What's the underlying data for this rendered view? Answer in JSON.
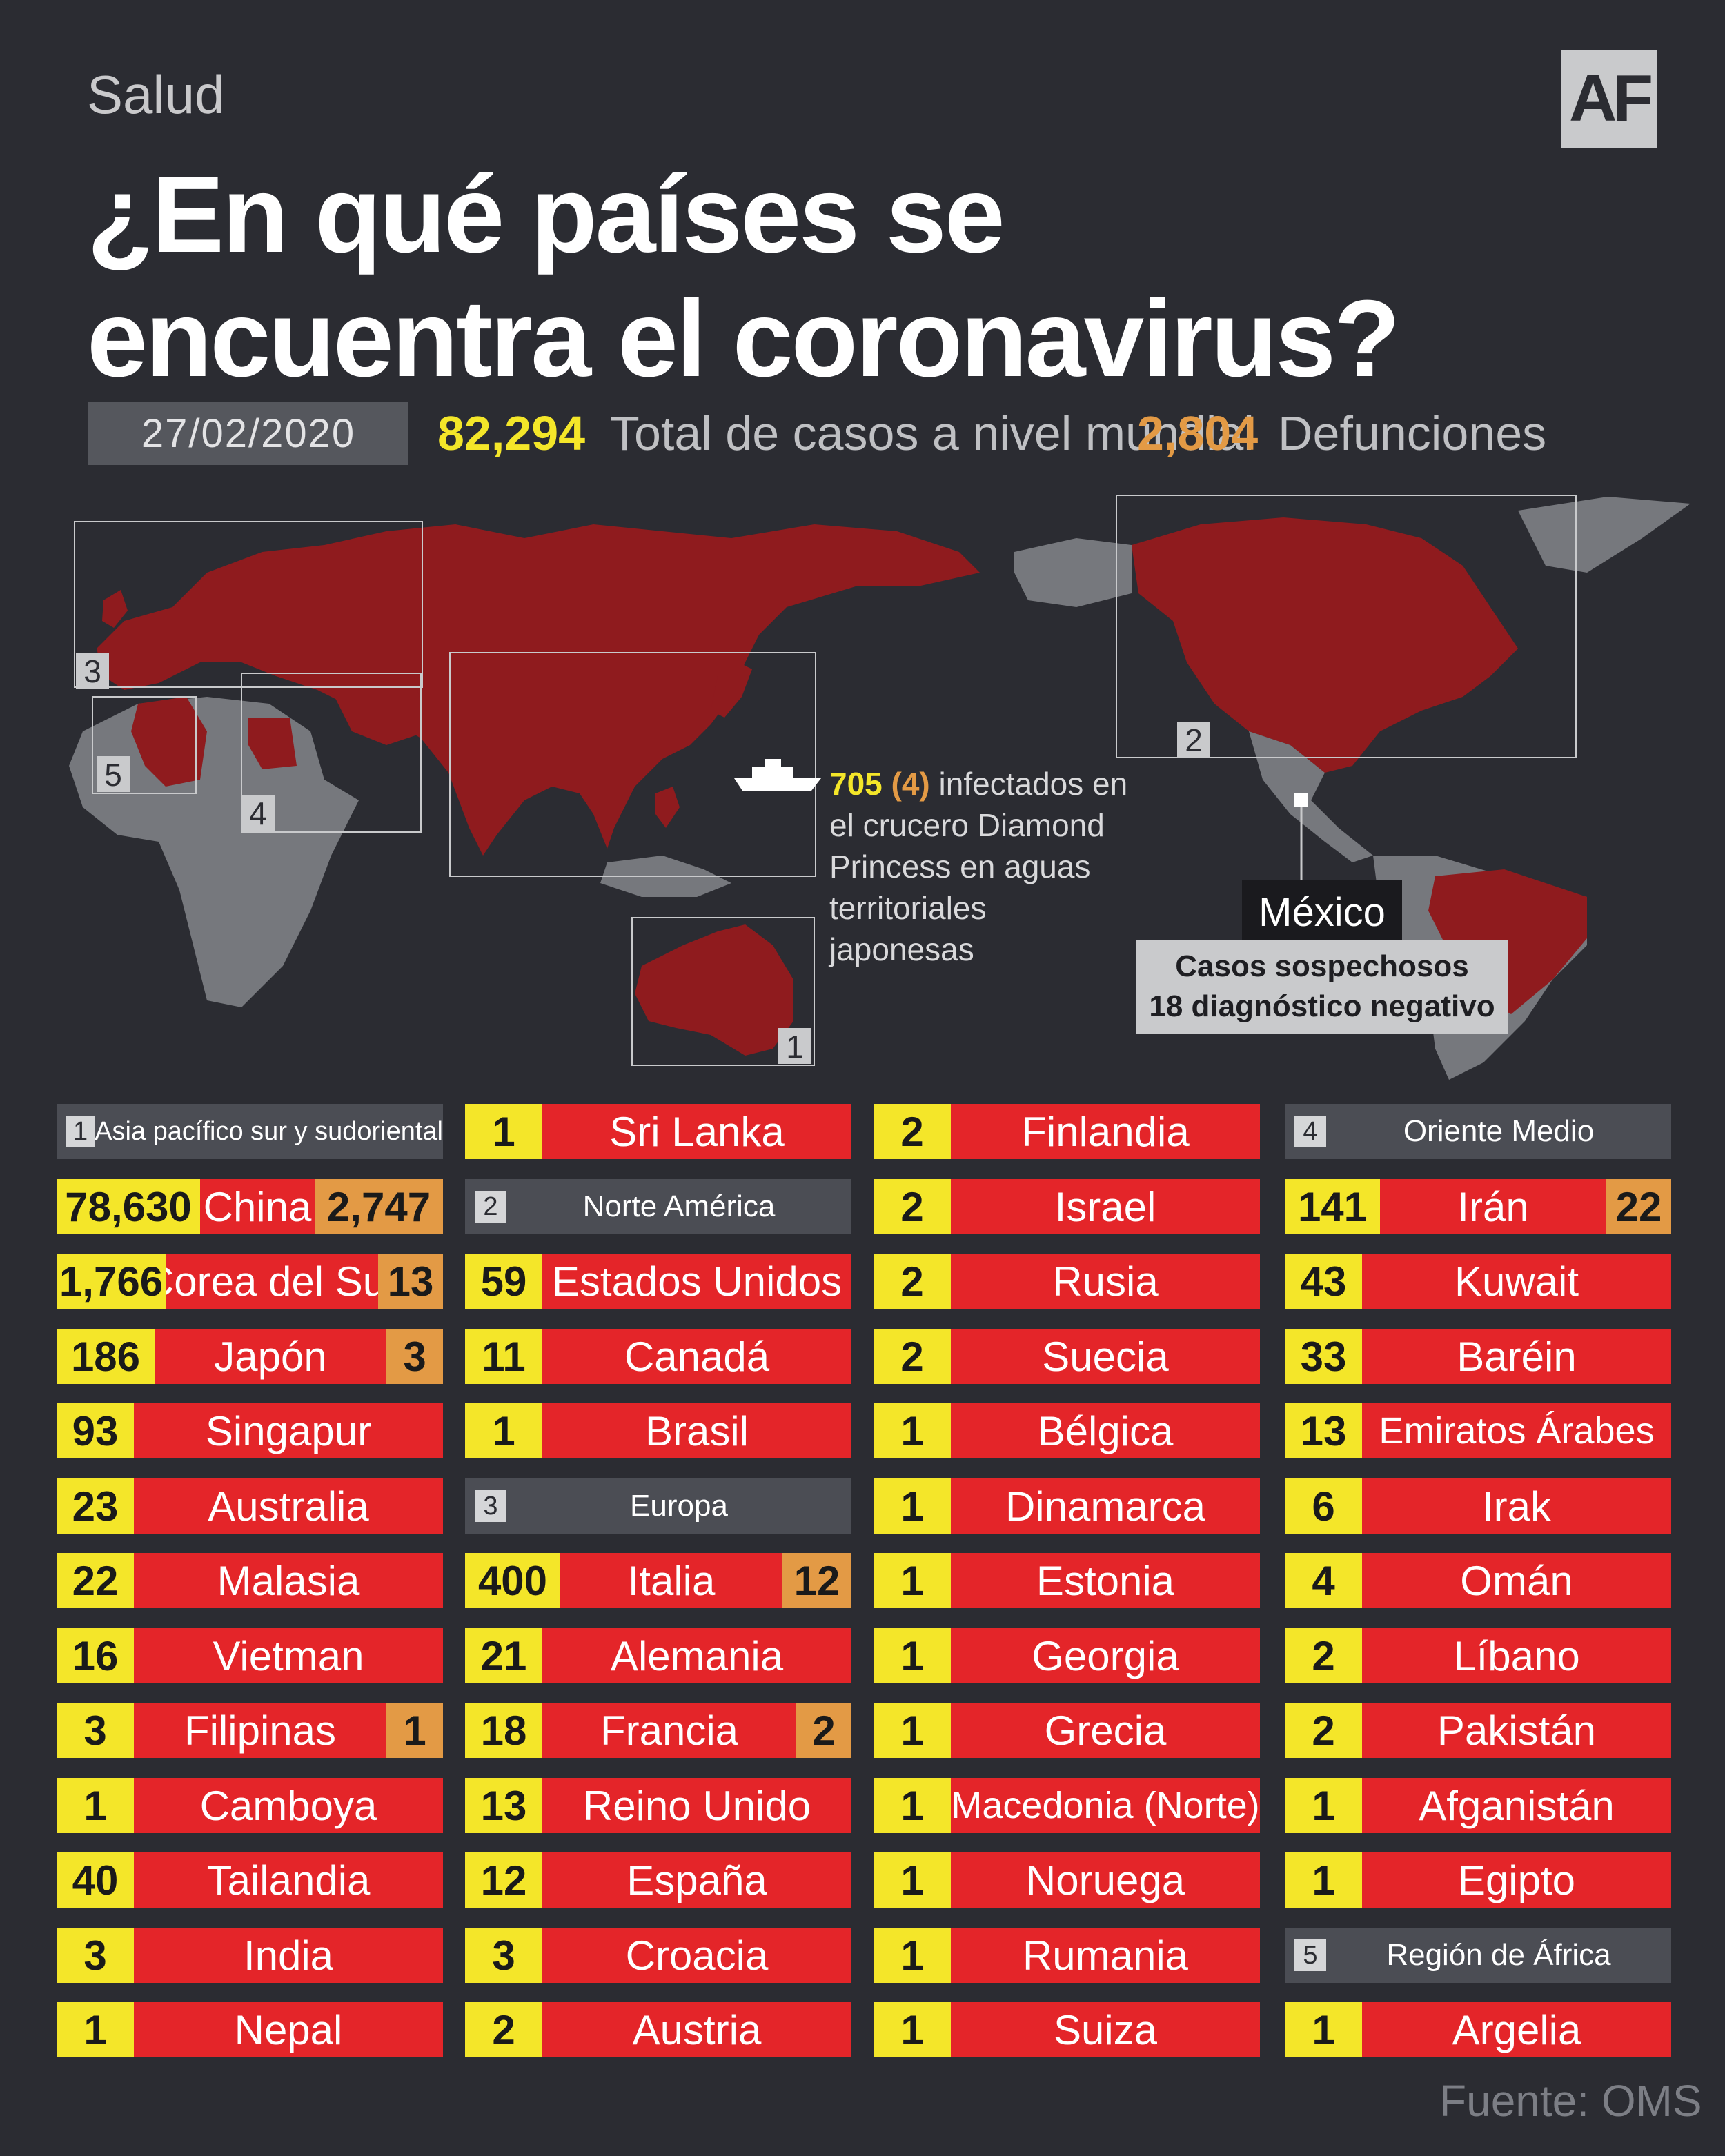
{
  "header": {
    "section": "Salud",
    "logo": "AF",
    "title_line1": "¿En qué países se",
    "title_line2": "encuentra el coronavirus?",
    "date": "27/02/2020",
    "total_cases": "82,294",
    "total_cases_label": "Total de casos a nivel mundial",
    "deaths": "2,804",
    "deaths_label": "Defunciones"
  },
  "map": {
    "region_labels": [
      "1",
      "2",
      "3",
      "4",
      "5"
    ],
    "ship_icon": "cruise-ship-icon",
    "ship_cases": "705",
    "ship_deaths": "(4)",
    "ship_text_1": "infectados en",
    "ship_text_2": "el crucero Diamond",
    "ship_text_3": "Princess en aguas",
    "ship_text_4": "territoriales japonesas",
    "mexico_label": "México",
    "mexico_line1": "Casos sospechosos",
    "mexico_line2": "18 diagnóstico negativo"
  },
  "colors": {
    "background": "#2b2c32",
    "cases": "#f4e629",
    "deaths": "#e39a45",
    "country": "#e42529",
    "affected_map": "#8f1b1e",
    "unaffected_map": "#76787d"
  },
  "columns": [
    [
      {
        "type": "header",
        "badge": "1",
        "label": "Asia pacífico sur y sudoriental"
      },
      {
        "cases": "78,630",
        "country": "China",
        "deaths": "2,747"
      },
      {
        "cases": "1,766",
        "country": "Corea del Sur",
        "deaths": "13"
      },
      {
        "cases": "186",
        "country": "Japón",
        "deaths": "3"
      },
      {
        "cases": "93",
        "country": "Singapur"
      },
      {
        "cases": "23",
        "country": "Australia"
      },
      {
        "cases": "22",
        "country": "Malasia"
      },
      {
        "cases": "16",
        "country": "Vietman"
      },
      {
        "cases": "3",
        "country": "Filipinas",
        "deaths": "1"
      },
      {
        "cases": "1",
        "country": "Camboya"
      },
      {
        "cases": "40",
        "country": "Tailandia"
      },
      {
        "cases": "3",
        "country": "India"
      },
      {
        "cases": "1",
        "country": "Nepal"
      }
    ],
    [
      {
        "cases": "1",
        "country": "Sri Lanka"
      },
      {
        "type": "header",
        "badge": "2",
        "label": "Norte América"
      },
      {
        "cases": "59",
        "country": "Estados Unidos"
      },
      {
        "cases": "11",
        "country": "Canadá"
      },
      {
        "cases": "1",
        "country": "Brasil"
      },
      {
        "type": "header",
        "badge": "3",
        "label": "Europa"
      },
      {
        "cases": "400",
        "country": "Italia",
        "deaths": "12"
      },
      {
        "cases": "21",
        "country": "Alemania"
      },
      {
        "cases": "18",
        "country": "Francia",
        "deaths": "2"
      },
      {
        "cases": "13",
        "country": "Reino Unido"
      },
      {
        "cases": "12",
        "country": "España"
      },
      {
        "cases": "3",
        "country": "Croacia"
      },
      {
        "cases": "2",
        "country": "Austria"
      }
    ],
    [
      {
        "cases": "2",
        "country": "Finlandia"
      },
      {
        "cases": "2",
        "country": "Israel"
      },
      {
        "cases": "2",
        "country": "Rusia"
      },
      {
        "cases": "2",
        "country": "Suecia"
      },
      {
        "cases": "1",
        "country": "Bélgica"
      },
      {
        "cases": "1",
        "country": "Dinamarca"
      },
      {
        "cases": "1",
        "country": "Estonia"
      },
      {
        "cases": "1",
        "country": "Georgia"
      },
      {
        "cases": "1",
        "country": "Grecia"
      },
      {
        "cases": "1",
        "country": "Macedonia (Norte)"
      },
      {
        "cases": "1",
        "country": "Noruega"
      },
      {
        "cases": "1",
        "country": "Rumania"
      },
      {
        "cases": "1",
        "country": "Suiza"
      }
    ],
    [
      {
        "type": "header",
        "badge": "4",
        "label": "Oriente Medio"
      },
      {
        "cases": "141",
        "country": "Irán",
        "deaths": "22"
      },
      {
        "cases": "43",
        "country": "Kuwait"
      },
      {
        "cases": "33",
        "country": "Baréin"
      },
      {
        "cases": "13",
        "country": "Emiratos Árabes"
      },
      {
        "cases": "6",
        "country": "Irak"
      },
      {
        "cases": "4",
        "country": "Omán"
      },
      {
        "cases": "2",
        "country": "Líbano"
      },
      {
        "cases": "2",
        "country": "Pakistán"
      },
      {
        "cases": "1",
        "country": "Afganistán"
      },
      {
        "cases": "1",
        "country": "Egipto"
      },
      {
        "type": "header",
        "badge": "5",
        "label": "Región de África"
      },
      {
        "cases": "1",
        "country": "Argelia"
      }
    ]
  ],
  "source": "Fuente: OMS"
}
